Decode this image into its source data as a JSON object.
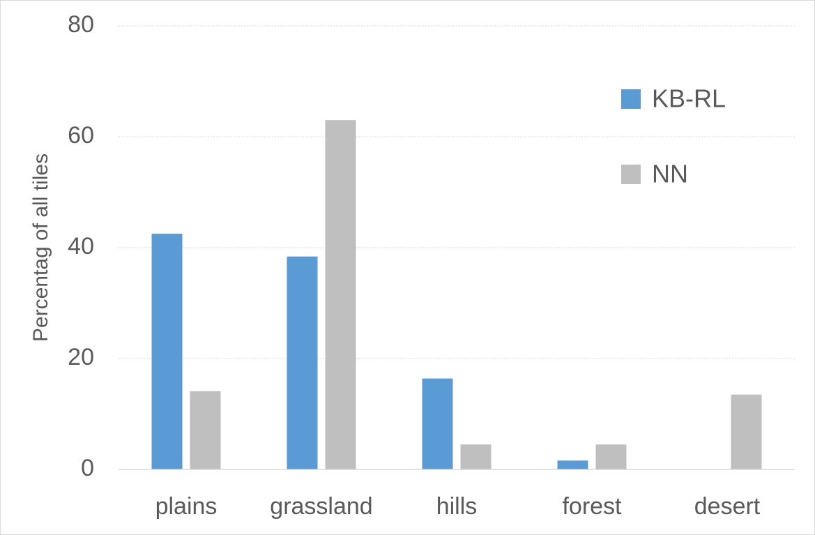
{
  "chart_data": {
    "type": "bar",
    "y_label": "Percentag of all tiles",
    "categories": [
      "plains",
      "grassland",
      "hills",
      "forest",
      "desert"
    ],
    "series": [
      {
        "name": "KB-RL",
        "color": "#5b9bd5",
        "values": [
          42.5,
          38.4,
          16.4,
          1.6,
          0
        ]
      },
      {
        "name": "NN",
        "color": "#bfbfbf",
        "values": [
          14.1,
          63.0,
          4.5,
          4.5,
          13.5
        ]
      }
    ],
    "ylim": [
      0,
      80
    ],
    "yticks": [
      0,
      20,
      40,
      60,
      80
    ],
    "grid": true,
    "legend": "upper right"
  }
}
